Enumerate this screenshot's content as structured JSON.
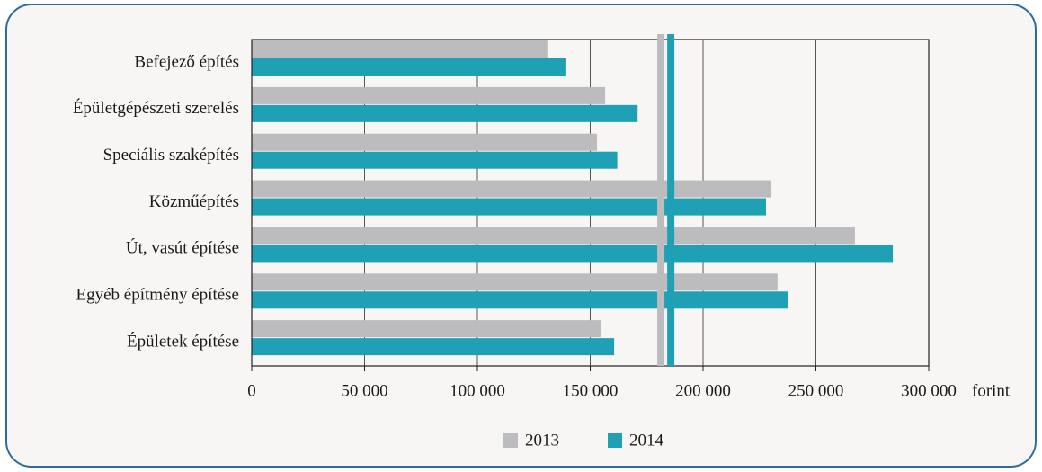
{
  "chart_data": {
    "type": "barh",
    "categories": [
      "Befejező építés",
      "Épületgépészeti szerelés",
      "Speciális szaképítés",
      "Közműépítés",
      "Út, vasút építése",
      "Egyéb építmény építése",
      "Épületek építése"
    ],
    "series": [
      {
        "name": "2013",
        "color": "#bcbcbe",
        "values": [
          131000,
          156600,
          153000,
          230300,
          267300,
          233000,
          154600
        ],
        "reference": 181300
      },
      {
        "name": "2014",
        "color": "#1fa0b5",
        "values": [
          139000,
          171000,
          162000,
          227900,
          284100,
          237800,
          160600
        ],
        "reference": 185700
      }
    ],
    "xlim": [
      0,
      300000
    ],
    "xticks": [
      0,
      {
        "value": 50000,
        "label": "50 000"
      },
      {
        "value": 100000,
        "label": "100 000"
      },
      {
        "value": 150000,
        "label": "150 000"
      },
      {
        "value": 200000,
        "label": "200 000"
      },
      {
        "value": 250000,
        "label": "250 000"
      },
      {
        "value": 300000,
        "label": "300 000"
      }
    ],
    "x_unit": "forint",
    "grid": true
  }
}
